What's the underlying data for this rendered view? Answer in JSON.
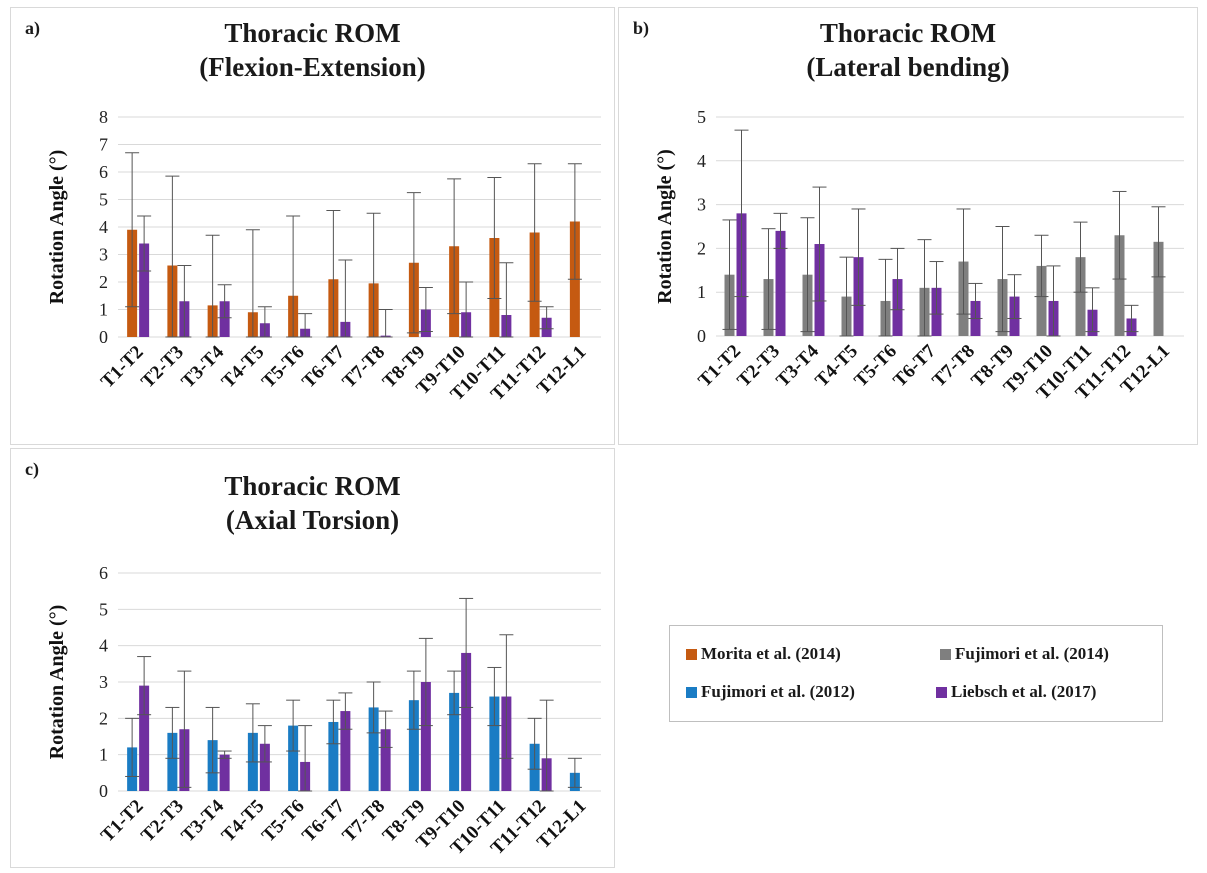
{
  "chart_data": [
    {
      "type": "bar",
      "panel_label": "a)",
      "title_lines": [
        "Thoracic ROM",
        "(Flexion-Extension)"
      ],
      "ylabel": "Rotation Angle (°)",
      "ylim": [
        0,
        8
      ],
      "yticks": [
        0,
        1,
        2,
        3,
        4,
        5,
        6,
        7,
        8
      ],
      "categories": [
        "T1-T2",
        "T2-T3",
        "T3-T4",
        "T4-T5",
        "T5-T6",
        "T6-T7",
        "T7-T8",
        "T8-T9",
        "T9-T10",
        "T10-T11",
        "T11-T12",
        "T12-L1"
      ],
      "series": [
        {
          "name": "Morita et al. (2014)",
          "color": "#c55a11",
          "values": [
            3.9,
            2.6,
            1.15,
            0.9,
            1.5,
            2.1,
            1.95,
            2.7,
            3.3,
            3.6,
            3.8,
            4.2
          ],
          "errors": [
            2.8,
            3.25,
            2.55,
            3.0,
            2.9,
            2.5,
            2.55,
            2.55,
            2.45,
            2.2,
            2.5,
            2.1
          ]
        },
        {
          "name": "Liebsch et al. (2017)",
          "color": "#7030a0",
          "values": [
            3.4,
            1.3,
            1.3,
            0.5,
            0.3,
            0.55,
            0.05,
            1.0,
            0.9,
            0.8,
            0.7,
            null
          ],
          "errors": [
            1.0,
            1.3,
            0.6,
            0.6,
            0.55,
            2.25,
            0.95,
            0.8,
            1.1,
            1.9,
            0.4,
            null
          ]
        }
      ]
    },
    {
      "type": "bar",
      "panel_label": "b)",
      "title_lines": [
        "Thoracic ROM",
        "(Lateral bending)"
      ],
      "ylabel": "Rotation Angle (°)",
      "ylim": [
        0,
        5
      ],
      "yticks": [
        0,
        1,
        2,
        3,
        4,
        5
      ],
      "categories": [
        "T1-T2",
        "T2-T3",
        "T3-T4",
        "T4-T5",
        "T5-T6",
        "T6-T7",
        "T7-T8",
        "T8-T9",
        "T9-T10",
        "T10-T11",
        "T11-T12",
        "T12-L1"
      ],
      "series": [
        {
          "name": "Fujimori et al. (2014)",
          "color": "#7f7f7f",
          "values": [
            1.4,
            1.3,
            1.4,
            0.9,
            0.8,
            1.1,
            1.7,
            1.3,
            1.6,
            1.8,
            2.3,
            2.15
          ],
          "errors": [
            1.25,
            1.15,
            1.3,
            0.9,
            0.95,
            1.1,
            1.2,
            1.2,
            0.7,
            0.8,
            1.0,
            0.8
          ]
        },
        {
          "name": "Liebsch et al. (2017)",
          "color": "#7030a0",
          "values": [
            2.8,
            2.4,
            2.1,
            1.8,
            1.3,
            1.1,
            0.8,
            0.9,
            0.8,
            0.6,
            0.4,
            null
          ],
          "errors": [
            1.9,
            0.4,
            1.3,
            1.1,
            0.7,
            0.6,
            0.4,
            0.5,
            0.8,
            0.5,
            0.3,
            null
          ]
        }
      ]
    },
    {
      "type": "bar",
      "panel_label": "c)",
      "title_lines": [
        "Thoracic ROM",
        "(Axial Torsion)"
      ],
      "ylabel": "Rotation Angle (°)",
      "ylim": [
        0,
        6
      ],
      "yticks": [
        0,
        1,
        2,
        3,
        4,
        5,
        6
      ],
      "categories": [
        "T1-T2",
        "T2-T3",
        "T3-T4",
        "T4-T5",
        "T5-T6",
        "T6-T7",
        "T7-T8",
        "T8-T9",
        "T9-T10",
        "T10-T11",
        "T11-T12",
        "T12-L1"
      ],
      "series": [
        {
          "name": "Fujimori et al. (2012)",
          "color": "#1a7cc4",
          "values": [
            1.2,
            1.6,
            1.4,
            1.6,
            1.8,
            1.9,
            2.3,
            2.5,
            2.7,
            2.6,
            1.3,
            0.5
          ],
          "errors": [
            0.8,
            0.7,
            0.9,
            0.8,
            0.7,
            0.6,
            0.7,
            0.8,
            0.6,
            0.8,
            0.7,
            0.4
          ]
        },
        {
          "name": "Liebsch et al. (2017)",
          "color": "#7030a0",
          "values": [
            2.9,
            1.7,
            1.0,
            1.3,
            0.8,
            2.2,
            1.7,
            3.0,
            3.8,
            2.6,
            0.9,
            null
          ],
          "errors": [
            0.8,
            1.6,
            0.1,
            0.5,
            1.0,
            0.5,
            0.5,
            1.2,
            1.5,
            1.7,
            1.6,
            null
          ]
        }
      ]
    }
  ],
  "legend": [
    {
      "label": "Morita et al. (2014)",
      "color": "#c55a11"
    },
    {
      "label": "Fujimori et al. (2014)",
      "color": "#7f7f7f"
    },
    {
      "label": "Fujimori et al. (2012)",
      "color": "#1a7cc4"
    },
    {
      "label": "Liebsch et al. (2017)",
      "color": "#7030a0"
    }
  ]
}
